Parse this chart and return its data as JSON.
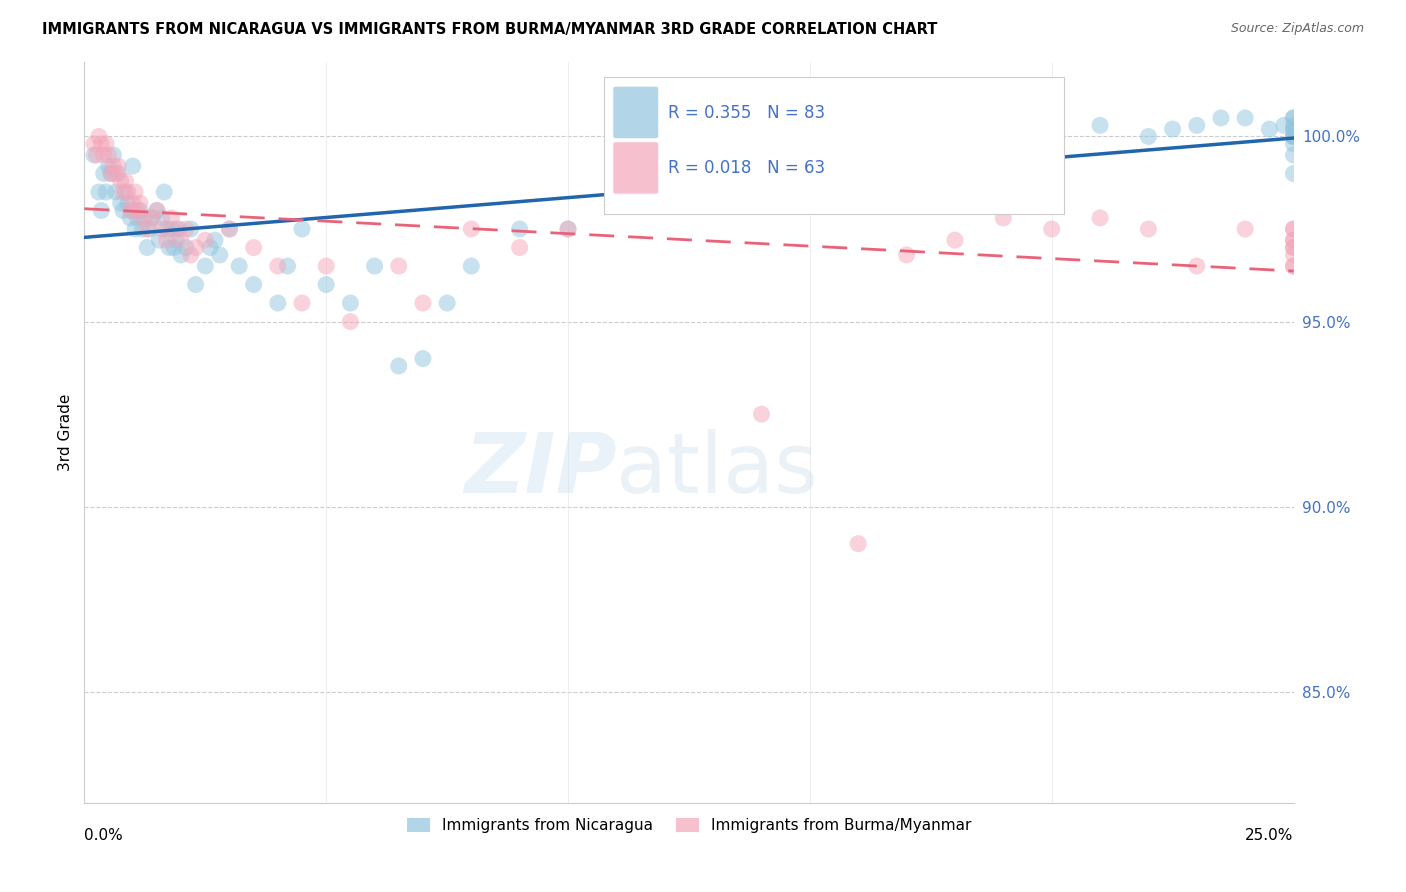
{
  "title": "IMMIGRANTS FROM NICARAGUA VS IMMIGRANTS FROM BURMA/MYANMAR 3RD GRADE CORRELATION CHART",
  "source": "Source: ZipAtlas.com",
  "ylabel": "3rd Grade",
  "legend_blue_label": "Immigrants from Nicaragua",
  "legend_pink_label": "Immigrants from Burma/Myanmar",
  "blue_color": "#92c5de",
  "pink_color": "#f4a6ba",
  "blue_line_color": "#2166ac",
  "pink_line_color": "#e8637a",
  "x_min": 0.0,
  "x_max": 25.0,
  "y_min": 82.0,
  "y_max": 102.0,
  "y_ticks": [
    85.0,
    90.0,
    95.0,
    100.0
  ],
  "y_tick_labels": [
    "85.0%",
    "90.0%",
    "95.0%",
    "100.0%"
  ],
  "R_blue": 0.355,
  "N_blue": 83,
  "R_pink": 0.018,
  "N_pink": 63,
  "blue_scatter_x": [
    0.2,
    0.3,
    0.35,
    0.4,
    0.45,
    0.5,
    0.55,
    0.6,
    0.65,
    0.7,
    0.75,
    0.8,
    0.85,
    0.9,
    0.95,
    1.0,
    1.0,
    1.05,
    1.1,
    1.15,
    1.2,
    1.25,
    1.3,
    1.35,
    1.4,
    1.5,
    1.55,
    1.6,
    1.65,
    1.7,
    1.75,
    1.8,
    1.85,
    1.9,
    1.95,
    2.0,
    2.1,
    2.2,
    2.3,
    2.5,
    2.6,
    2.7,
    2.8,
    3.0,
    3.2,
    3.5,
    4.0,
    4.2,
    4.5,
    5.0,
    5.5,
    6.0,
    6.5,
    7.0,
    7.5,
    8.0,
    9.0,
    10.0,
    12.0,
    13.5,
    14.5,
    16.5,
    18.0,
    20.0,
    21.0,
    22.0,
    22.5,
    23.0,
    23.5,
    24.0,
    24.5,
    24.8,
    25.0,
    25.0,
    25.0,
    25.0,
    25.0,
    25.0,
    25.0,
    25.0,
    25.0,
    25.0,
    25.0
  ],
  "blue_scatter_y": [
    99.5,
    98.5,
    98.0,
    99.0,
    98.5,
    99.2,
    99.0,
    99.5,
    98.5,
    99.0,
    98.2,
    98.0,
    98.5,
    98.2,
    97.8,
    99.2,
    98.0,
    97.5,
    97.8,
    98.0,
    97.5,
    97.8,
    97.0,
    97.5,
    97.8,
    98.0,
    97.2,
    97.8,
    98.5,
    97.5,
    97.0,
    97.5,
    97.0,
    97.2,
    97.5,
    96.8,
    97.0,
    97.5,
    96.0,
    96.5,
    97.0,
    97.2,
    96.8,
    97.5,
    96.5,
    96.0,
    95.5,
    96.5,
    97.5,
    96.0,
    95.5,
    96.5,
    93.8,
    94.0,
    95.5,
    96.5,
    97.5,
    97.5,
    99.5,
    99.0,
    98.5,
    99.5,
    100.2,
    100.0,
    100.3,
    100.0,
    100.2,
    100.3,
    100.5,
    100.5,
    100.2,
    100.3,
    99.0,
    99.5,
    100.0,
    100.2,
    100.5,
    100.3,
    100.0,
    99.8,
    100.5,
    100.0,
    100.2
  ],
  "pink_scatter_x": [
    0.2,
    0.25,
    0.3,
    0.35,
    0.4,
    0.45,
    0.5,
    0.55,
    0.6,
    0.65,
    0.7,
    0.75,
    0.8,
    0.85,
    0.9,
    0.95,
    1.0,
    1.05,
    1.1,
    1.15,
    1.2,
    1.3,
    1.4,
    1.5,
    1.6,
    1.7,
    1.8,
    1.9,
    2.0,
    2.1,
    2.2,
    2.3,
    2.5,
    3.0,
    3.5,
    4.0,
    4.5,
    5.0,
    5.5,
    6.5,
    7.0,
    8.0,
    9.0,
    10.0,
    14.0,
    16.0,
    17.0,
    18.0,
    19.0,
    20.0,
    21.0,
    22.0,
    23.0,
    24.0,
    25.0,
    25.0,
    25.0,
    25.0,
    25.0,
    25.0,
    25.0,
    25.0,
    25.0
  ],
  "pink_scatter_y": [
    99.8,
    99.5,
    100.0,
    99.8,
    99.5,
    99.8,
    99.5,
    99.0,
    99.2,
    99.0,
    99.2,
    98.8,
    98.5,
    98.8,
    98.5,
    98.0,
    98.2,
    98.5,
    98.0,
    98.2,
    97.8,
    97.5,
    97.8,
    98.0,
    97.5,
    97.2,
    97.8,
    97.5,
    97.2,
    97.5,
    96.8,
    97.0,
    97.2,
    97.5,
    97.0,
    96.5,
    95.5,
    96.5,
    95.0,
    96.5,
    95.5,
    97.5,
    97.0,
    97.5,
    92.5,
    89.0,
    96.8,
    97.2,
    97.8,
    97.5,
    97.8,
    97.5,
    96.5,
    97.5,
    97.0,
    96.5,
    97.2,
    97.5,
    96.8,
    97.0,
    96.5,
    97.2,
    97.5
  ]
}
